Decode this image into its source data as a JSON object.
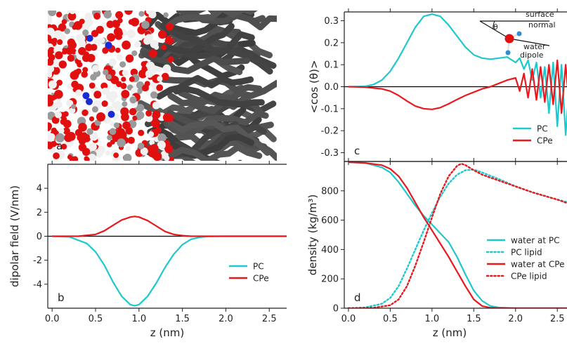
{
  "colors": {
    "pc": "#1ec8cc",
    "cpe": "#e8191e",
    "axis": "#222222",
    "zero": "#000000",
    "water_o": "#e01010",
    "water_h": "#f0f0f0",
    "lipid": "#4a4a4a"
  },
  "panel_a": {
    "letter": "a"
  },
  "chart_data": [
    {
      "id": "b",
      "type": "line",
      "letter": "b",
      "xlabel": "z (nm)",
      "ylabel": "dipolar field (V/nm)",
      "xlim": [
        -0.05,
        2.7
      ],
      "ylim": [
        -6,
        6
      ],
      "xticks": [
        0.0,
        0.5,
        1.0,
        1.5,
        2.0,
        2.5
      ],
      "xtick_labels": [
        "0.0",
        "0.5",
        "1.0",
        "1.5",
        "2.0",
        "2.5"
      ],
      "yticks": [
        -4,
        -2,
        0,
        2,
        4
      ],
      "ytick_labels": [
        "-4",
        "-2",
        "0",
        "2",
        "4"
      ],
      "zero_line": true,
      "legend": {
        "placement": "lower-right",
        "entries": [
          {
            "label": "PC",
            "color": "#1ec8cc",
            "dash": "solid"
          },
          {
            "label": "CPe",
            "color": "#e8191e",
            "dash": "solid"
          }
        ]
      },
      "series": [
        {
          "name": "PC",
          "color": "#1ec8cc",
          "x": [
            0.0,
            0.2,
            0.4,
            0.5,
            0.6,
            0.7,
            0.8,
            0.9,
            0.95,
            1.0,
            1.1,
            1.2,
            1.3,
            1.4,
            1.5,
            1.6,
            1.7,
            1.8,
            2.0,
            2.2,
            2.5,
            2.7
          ],
          "y": [
            0.0,
            -0.05,
            -0.6,
            -1.3,
            -2.4,
            -3.8,
            -5.0,
            -5.7,
            -5.8,
            -5.7,
            -5.0,
            -3.9,
            -2.6,
            -1.5,
            -0.7,
            -0.25,
            -0.08,
            -0.02,
            0.0,
            0.0,
            0.0,
            0.0
          ]
        },
        {
          "name": "CPe",
          "color": "#e8191e",
          "x": [
            0.0,
            0.3,
            0.5,
            0.6,
            0.7,
            0.8,
            0.9,
            0.95,
            1.0,
            1.1,
            1.2,
            1.3,
            1.4,
            1.5,
            1.6,
            1.7,
            2.0,
            2.7
          ],
          "y": [
            0.0,
            0.0,
            0.15,
            0.45,
            0.9,
            1.35,
            1.6,
            1.65,
            1.6,
            1.3,
            0.85,
            0.4,
            0.15,
            0.05,
            0.0,
            0.0,
            0.0,
            0.0
          ]
        }
      ]
    },
    {
      "id": "c",
      "type": "line",
      "letter": "c",
      "xlabel": "",
      "ylabel": "<cos (θ)>",
      "xlim": [
        -0.05,
        2.7
      ],
      "ylim": [
        -0.34,
        0.34
      ],
      "xticks": [
        0.0,
        0.5,
        1.0,
        1.5,
        2.0,
        2.5
      ],
      "xtick_labels": [],
      "yticks": [
        -0.3,
        -0.2,
        -0.1,
        0.0,
        0.1,
        0.2,
        0.3
      ],
      "ytick_labels": [
        "-0.3",
        "-0.2",
        "-0.1",
        "0.0",
        "0.1",
        "0.2",
        "0.3"
      ],
      "zero_line": true,
      "legend": {
        "placement": "lower-right",
        "entries": [
          {
            "label": "PC",
            "color": "#1ec8cc",
            "dash": "solid"
          },
          {
            "label": "CPe",
            "color": "#e8191e",
            "dash": "solid"
          }
        ]
      },
      "inset": {
        "theta": "θ",
        "surface": "surface",
        "normal": "normal",
        "water": "water",
        "dipole": "dipole"
      },
      "series": [
        {
          "name": "PC",
          "color": "#1ec8cc",
          "x": [
            0.0,
            0.2,
            0.3,
            0.4,
            0.5,
            0.6,
            0.7,
            0.8,
            0.9,
            1.0,
            1.1,
            1.2,
            1.3,
            1.4,
            1.5,
            1.6,
            1.7,
            1.8,
            1.9,
            2.0,
            2.05,
            2.1,
            2.15,
            2.2,
            2.25,
            2.3,
            2.35,
            2.4,
            2.45,
            2.5,
            2.55,
            2.6,
            2.65,
            2.7
          ],
          "y": [
            0.0,
            0.002,
            0.01,
            0.03,
            0.07,
            0.13,
            0.2,
            0.27,
            0.32,
            0.33,
            0.32,
            0.28,
            0.23,
            0.18,
            0.145,
            0.13,
            0.125,
            0.13,
            0.135,
            0.11,
            0.13,
            0.08,
            0.12,
            0.03,
            0.11,
            -0.05,
            0.09,
            -0.12,
            0.11,
            -0.18,
            0.1,
            -0.22,
            0.04,
            -0.15
          ]
        },
        {
          "name": "CPe",
          "color": "#e8191e",
          "x": [
            0.0,
            0.2,
            0.4,
            0.5,
            0.6,
            0.7,
            0.8,
            0.9,
            1.0,
            1.1,
            1.2,
            1.3,
            1.4,
            1.5,
            1.6,
            1.7,
            1.8,
            1.9,
            2.0,
            2.05,
            2.1,
            2.15,
            2.2,
            2.25,
            2.3,
            2.35,
            2.4,
            2.45,
            2.5,
            2.55,
            2.6,
            2.65,
            2.7
          ],
          "y": [
            0.0,
            -0.002,
            -0.01,
            -0.02,
            -0.04,
            -0.065,
            -0.088,
            -0.1,
            -0.103,
            -0.095,
            -0.078,
            -0.058,
            -0.04,
            -0.025,
            -0.01,
            0.0,
            0.015,
            0.03,
            0.04,
            -0.02,
            0.06,
            -0.05,
            0.08,
            -0.06,
            0.09,
            -0.07,
            0.1,
            -0.08,
            0.12,
            -0.12,
            0.1,
            -0.12,
            0.06
          ]
        }
      ]
    },
    {
      "id": "d",
      "type": "line",
      "letter": "d",
      "xlabel": "z (nm)",
      "ylabel": "density (kg/m³)",
      "xlim": [
        -0.05,
        2.7
      ],
      "ylim": [
        0,
        1000
      ],
      "xticks": [
        0.0,
        0.5,
        1.0,
        1.5,
        2.0,
        2.5
      ],
      "xtick_labels": [
        "0.0",
        "0.5",
        "1.0",
        "1.5",
        "2.0",
        "2.5"
      ],
      "yticks": [
        0,
        200,
        400,
        600,
        800
      ],
      "ytick_labels": [
        "0",
        "200",
        "400",
        "600",
        "800"
      ],
      "zero_line": false,
      "legend": {
        "placement": "lower-right",
        "entries": [
          {
            "label": "water at PC",
            "color": "#1ec8cc",
            "dash": "solid"
          },
          {
            "label": "PC lipid",
            "color": "#1ec8cc",
            "dash": "dotted"
          },
          {
            "label": "water at CPe",
            "color": "#e8191e",
            "dash": "solid"
          },
          {
            "label": "CPe lipid",
            "color": "#e8191e",
            "dash": "dotted"
          }
        ]
      },
      "series": [
        {
          "name": "water at PC",
          "color": "#1ec8cc",
          "dash": "solid",
          "x": [
            0.0,
            0.2,
            0.4,
            0.5,
            0.6,
            0.7,
            0.8,
            0.9,
            1.0,
            1.1,
            1.2,
            1.3,
            1.4,
            1.5,
            1.6,
            1.7,
            1.8,
            2.0,
            2.7
          ],
          "y": [
            995,
            990,
            960,
            925,
            860,
            780,
            700,
            630,
            570,
            510,
            450,
            350,
            230,
            120,
            50,
            15,
            5,
            0,
            0
          ]
        },
        {
          "name": "PC lipid",
          "color": "#1ec8cc",
          "dash": "dotted",
          "x": [
            0.0,
            0.2,
            0.4,
            0.5,
            0.6,
            0.7,
            0.8,
            0.9,
            1.0,
            1.1,
            1.2,
            1.3,
            1.4,
            1.5,
            1.6,
            1.8,
            2.0,
            2.2,
            2.5,
            2.7
          ],
          "y": [
            0,
            5,
            30,
            70,
            150,
            270,
            400,
            530,
            650,
            760,
            850,
            910,
            940,
            945,
            925,
            880,
            830,
            790,
            740,
            710
          ]
        },
        {
          "name": "water at CPe",
          "color": "#e8191e",
          "dash": "solid",
          "x": [
            0.0,
            0.2,
            0.4,
            0.5,
            0.6,
            0.7,
            0.8,
            0.9,
            1.0,
            1.1,
            1.2,
            1.3,
            1.4,
            1.5,
            1.6,
            1.7,
            1.8,
            2.0,
            2.7
          ],
          "y": [
            995,
            990,
            975,
            950,
            900,
            820,
            720,
            620,
            530,
            440,
            350,
            250,
            150,
            60,
            15,
            3,
            0,
            0,
            0
          ]
        },
        {
          "name": "CPe lipid",
          "color": "#e8191e",
          "dash": "dotted",
          "x": [
            0.0,
            0.3,
            0.5,
            0.6,
            0.7,
            0.8,
            0.9,
            1.0,
            1.1,
            1.2,
            1.3,
            1.35,
            1.4,
            1.5,
            1.6,
            1.8,
            2.0,
            2.2,
            2.5,
            2.7
          ],
          "y": [
            0,
            3,
            20,
            60,
            150,
            290,
            450,
            620,
            780,
            900,
            970,
            985,
            975,
            940,
            910,
            870,
            830,
            790,
            740,
            700
          ]
        }
      ]
    }
  ]
}
